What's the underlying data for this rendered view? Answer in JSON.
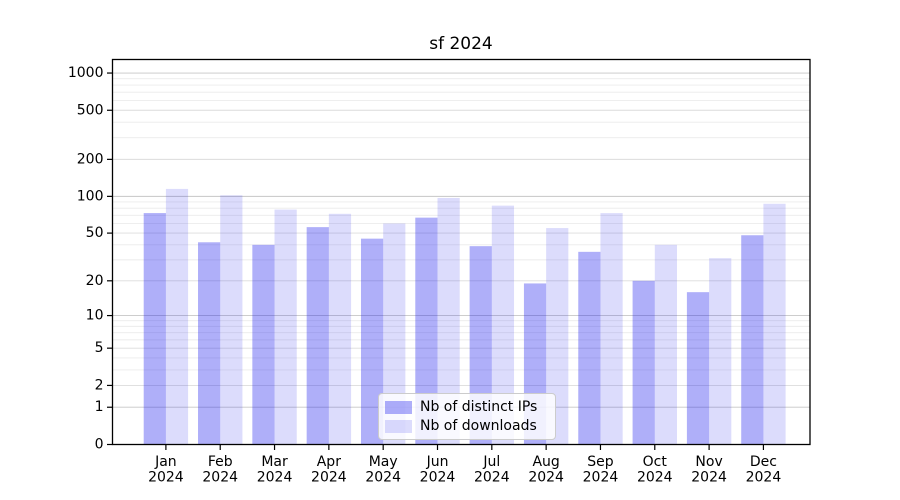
{
  "title": "sf 2024",
  "chart_data": {
    "type": "bar",
    "title": "sf 2024",
    "categories": [
      "Jan",
      "Feb",
      "Mar",
      "Apr",
      "May",
      "Jun",
      "Jul",
      "Aug",
      "Sep",
      "Oct",
      "Nov",
      "Dec"
    ],
    "year_label": "2024",
    "series": [
      {
        "key": "ips",
        "name": "Nb of distinct IPs",
        "color": "rgba(34,34,238,0.36)",
        "values": [
          73,
          42,
          40,
          56,
          45,
          67,
          39,
          19,
          35,
          20,
          16,
          48
        ]
      },
      {
        "key": "downloads",
        "name": "Nb of downloads",
        "color": "rgba(34,34,238,0.155)",
        "values": [
          115,
          102,
          78,
          72,
          60,
          97,
          84,
          55,
          73,
          40,
          31,
          87
        ]
      }
    ],
    "y_ticks": [
      0,
      1,
      2,
      5,
      10,
      20,
      50,
      100,
      200,
      500,
      1000
    ],
    "y_scale": "log(1+x)",
    "ylim": [
      0,
      1280
    ],
    "xlabel": "",
    "ylabel": "",
    "grid": "both",
    "legend_position": "lower center",
    "grid_colors": {
      "decade": "#c6c6c6",
      "labeled": "#dcdcdc",
      "minor": "#ebebeb"
    }
  }
}
